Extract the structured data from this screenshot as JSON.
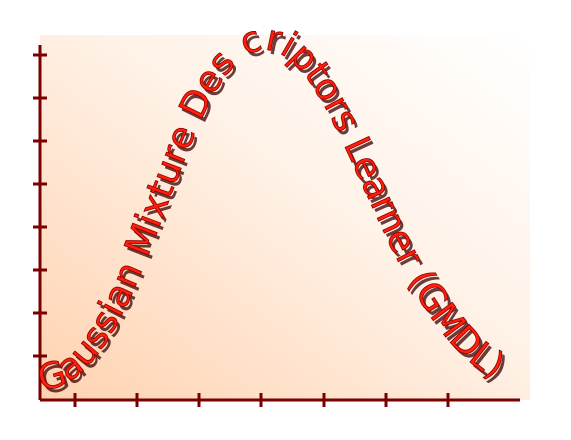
{
  "logo": {
    "text": "Gaussian Mixture Des criptors Learner (GMDL)",
    "colors": {
      "text": "#ff1e0a",
      "shadow": "#3a0000",
      "axis": "#7a0000",
      "fill_strong": "#ffd2b0",
      "fill_light": "#ffffff"
    }
  }
}
